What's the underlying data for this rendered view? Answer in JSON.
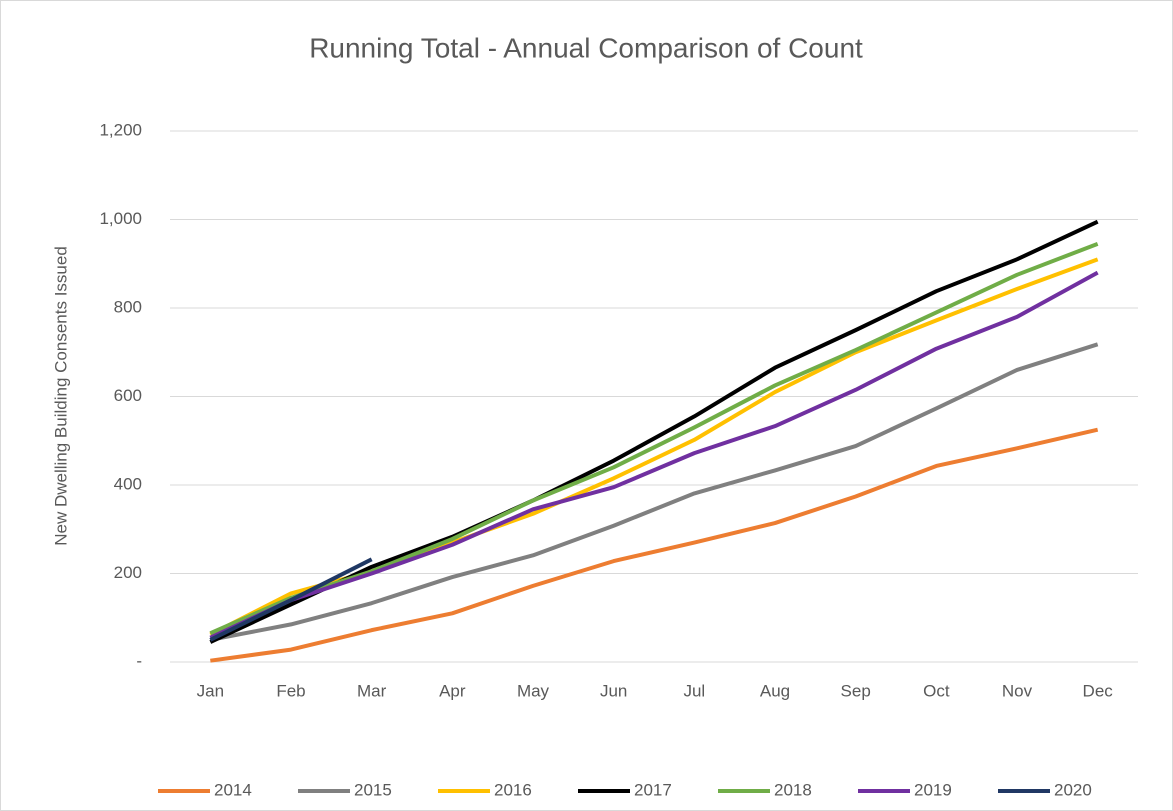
{
  "chart_data": {
    "type": "line",
    "title": "Running Total - Annual Comparison of Count",
    "y_label": "New Dwelling Building Consents Issued",
    "categories": [
      "Jan",
      "Feb",
      "Mar",
      "Apr",
      "May",
      "Jun",
      "Jul",
      "Aug",
      "Sep",
      "Oct",
      "Nov",
      "Dec"
    ],
    "series": [
      {
        "name": "2014",
        "color": "#ed7d31",
        "values": [
          3,
          28,
          72,
          110,
          172,
          228,
          270,
          314,
          374,
          443,
          483,
          525
        ]
      },
      {
        "name": "2015",
        "color": "#808080",
        "values": [
          50,
          85,
          133,
          192,
          241,
          308,
          381,
          433,
          488,
          573,
          660,
          718
        ]
      },
      {
        "name": "2016",
        "color": "#ffc000",
        "values": [
          62,
          155,
          205,
          270,
          335,
          415,
          502,
          610,
          700,
          772,
          843,
          910
        ]
      },
      {
        "name": "2017",
        "color": "#000000",
        "values": [
          45,
          130,
          215,
          283,
          365,
          455,
          555,
          665,
          750,
          838,
          910,
          995
        ]
      },
      {
        "name": "2018",
        "color": "#70ad47",
        "values": [
          65,
          145,
          205,
          278,
          365,
          440,
          530,
          625,
          705,
          790,
          875,
          945
        ]
      },
      {
        "name": "2019",
        "color": "#7030a0",
        "values": [
          55,
          140,
          200,
          265,
          345,
          395,
          472,
          533,
          615,
          708,
          780,
          880
        ]
      },
      {
        "name": "2020",
        "color": "#203864",
        "values": [
          50,
          140,
          232,
          null,
          null,
          null,
          null,
          null,
          null,
          null,
          null,
          null
        ]
      }
    ],
    "ylim": [
      0,
      1200
    ],
    "yticks": [
      {
        "value": 0,
        "label": "-"
      },
      200,
      400,
      600,
      800,
      {
        "value": 1000,
        "label": "1,000"
      },
      {
        "value": 1200,
        "label": "1,200"
      }
    ],
    "grid": true,
    "legend": "bottom"
  }
}
